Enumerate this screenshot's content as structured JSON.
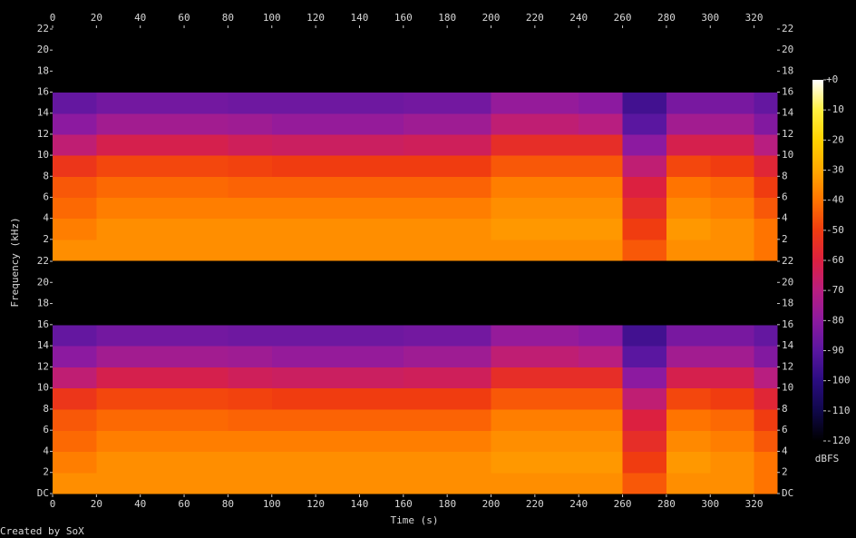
{
  "chart_data": {
    "type": "heatmap",
    "xlabel": "Time (s)",
    "ylabel": "Frequency (kHz)",
    "footer": "Created by SoX",
    "xlim": [
      0,
      330.5
    ],
    "xticks": [
      0,
      20,
      40,
      60,
      80,
      100,
      120,
      140,
      160,
      180,
      200,
      220,
      240,
      260,
      280,
      300,
      320
    ],
    "x_edges": [
      0,
      20,
      40,
      60,
      80,
      100,
      120,
      140,
      160,
      180,
      200,
      220,
      240,
      260,
      280,
      300,
      320,
      330.5
    ],
    "y_edges": [
      0,
      2,
      4,
      6,
      8,
      10,
      12,
      14,
      16,
      18,
      20,
      22
    ],
    "channels": [
      {
        "ylim": [
          0,
          22
        ],
        "yticks": [
          2,
          4,
          6,
          8,
          10,
          12,
          14,
          16,
          18,
          20,
          22
        ],
        "values": [
          [
            -35,
            -35,
            -35,
            -35,
            -35,
            -35,
            -35,
            -35,
            -35,
            -35,
            -35,
            -35,
            -35,
            -45,
            -35,
            -35,
            -40
          ],
          [
            -38,
            -35,
            -35,
            -35,
            -35,
            -35,
            -35,
            -35,
            -35,
            -35,
            -33,
            -33,
            -33,
            -50,
            -33,
            -35,
            -40
          ],
          [
            -42,
            -38,
            -38,
            -38,
            -38,
            -38,
            -38,
            -38,
            -38,
            -38,
            -35,
            -35,
            -35,
            -55,
            -36,
            -38,
            -45
          ],
          [
            -45,
            -42,
            -42,
            -42,
            -43,
            -43,
            -43,
            -43,
            -43,
            -43,
            -38,
            -38,
            -38,
            -60,
            -40,
            -42,
            -50
          ],
          [
            -52,
            -48,
            -48,
            -48,
            -49,
            -50,
            -50,
            -50,
            -50,
            -50,
            -45,
            -45,
            -45,
            -68,
            -48,
            -50,
            -58
          ],
          [
            -68,
            -62,
            -62,
            -62,
            -64,
            -65,
            -65,
            -65,
            -64,
            -64,
            -55,
            -55,
            -55,
            -80,
            -62,
            -62,
            -70
          ],
          [
            -80,
            -75,
            -75,
            -75,
            -76,
            -78,
            -78,
            -78,
            -76,
            -76,
            -68,
            -68,
            -70,
            -90,
            -75,
            -75,
            -82
          ],
          [
            -88,
            -85,
            -85,
            -85,
            -86,
            -86,
            -86,
            -86,
            -85,
            -85,
            -78,
            -78,
            -80,
            -95,
            -84,
            -84,
            -88
          ],
          [
            -120,
            -120,
            -120,
            -120,
            -120,
            -120,
            -120,
            -120,
            -120,
            -120,
            -120,
            -120,
            -120,
            -120,
            -120,
            -120,
            -120
          ],
          [
            -120,
            -120,
            -120,
            -120,
            -120,
            -120,
            -120,
            -120,
            -120,
            -120,
            -120,
            -120,
            -120,
            -120,
            -120,
            -120,
            -120
          ],
          [
            -120,
            -120,
            -120,
            -120,
            -120,
            -120,
            -120,
            -120,
            -120,
            -120,
            -120,
            -120,
            -120,
            -120,
            -120,
            -120,
            -120
          ]
        ]
      },
      {
        "ylim": [
          0,
          22
        ],
        "yticks": [
          {
            "value": 0,
            "label": "DC"
          },
          2,
          4,
          6,
          8,
          10,
          12,
          14,
          16,
          18,
          20,
          22
        ],
        "values": [
          [
            -35,
            -35,
            -35,
            -35,
            -35,
            -35,
            -35,
            -35,
            -35,
            -35,
            -35,
            -35,
            -35,
            -45,
            -35,
            -35,
            -40
          ],
          [
            -38,
            -35,
            -35,
            -35,
            -35,
            -35,
            -35,
            -35,
            -35,
            -35,
            -33,
            -33,
            -33,
            -50,
            -33,
            -35,
            -40
          ],
          [
            -42,
            -38,
            -38,
            -38,
            -38,
            -38,
            -38,
            -38,
            -38,
            -38,
            -35,
            -35,
            -35,
            -55,
            -36,
            -38,
            -45
          ],
          [
            -45,
            -42,
            -42,
            -42,
            -43,
            -43,
            -43,
            -43,
            -43,
            -43,
            -38,
            -38,
            -38,
            -60,
            -40,
            -42,
            -50
          ],
          [
            -52,
            -48,
            -48,
            -48,
            -49,
            -50,
            -50,
            -50,
            -50,
            -50,
            -45,
            -45,
            -45,
            -68,
            -48,
            -50,
            -58
          ],
          [
            -68,
            -62,
            -62,
            -62,
            -64,
            -65,
            -65,
            -65,
            -64,
            -64,
            -55,
            -55,
            -55,
            -80,
            -62,
            -62,
            -70
          ],
          [
            -80,
            -75,
            -75,
            -75,
            -76,
            -78,
            -78,
            -78,
            -76,
            -76,
            -68,
            -68,
            -70,
            -90,
            -75,
            -75,
            -82
          ],
          [
            -88,
            -85,
            -85,
            -85,
            -86,
            -86,
            -86,
            -86,
            -85,
            -85,
            -78,
            -78,
            -80,
            -95,
            -84,
            -84,
            -88
          ],
          [
            -120,
            -120,
            -120,
            -120,
            -120,
            -120,
            -120,
            -120,
            -120,
            -120,
            -120,
            -120,
            -120,
            -120,
            -120,
            -120,
            -120
          ],
          [
            -120,
            -120,
            -120,
            -120,
            -120,
            -120,
            -120,
            -120,
            -120,
            -120,
            -120,
            -120,
            -120,
            -120,
            -120,
            -120,
            -120
          ],
          [
            -120,
            -120,
            -120,
            -120,
            -120,
            -120,
            -120,
            -120,
            -120,
            -120,
            -120,
            -120,
            -120,
            -120,
            -120,
            -120,
            -120
          ]
        ]
      }
    ],
    "colorbar": {
      "label": "dBFS",
      "lim": [
        -120,
        0
      ],
      "ticks": [
        {
          "value": 0,
          "label": "+0"
        },
        -10,
        -20,
        -30,
        -40,
        -50,
        -60,
        -70,
        -80,
        -90,
        -100,
        -110,
        -120
      ],
      "colormap": [
        {
          "value": -120,
          "color": "#000000"
        },
        {
          "value": -110,
          "color": "#10084a"
        },
        {
          "value": -100,
          "color": "#2a0c80"
        },
        {
          "value": -90,
          "color": "#5a16a0"
        },
        {
          "value": -80,
          "color": "#8c1aa0"
        },
        {
          "value": -70,
          "color": "#b81e80"
        },
        {
          "value": -60,
          "color": "#dc2040"
        },
        {
          "value": -50,
          "color": "#f03c10"
        },
        {
          "value": -40,
          "color": "#ff7400"
        },
        {
          "value": -30,
          "color": "#ffa800"
        },
        {
          "value": -20,
          "color": "#ffd200"
        },
        {
          "value": -10,
          "color": "#fff040"
        },
        {
          "value": 0,
          "color": "#ffffff"
        }
      ]
    }
  }
}
